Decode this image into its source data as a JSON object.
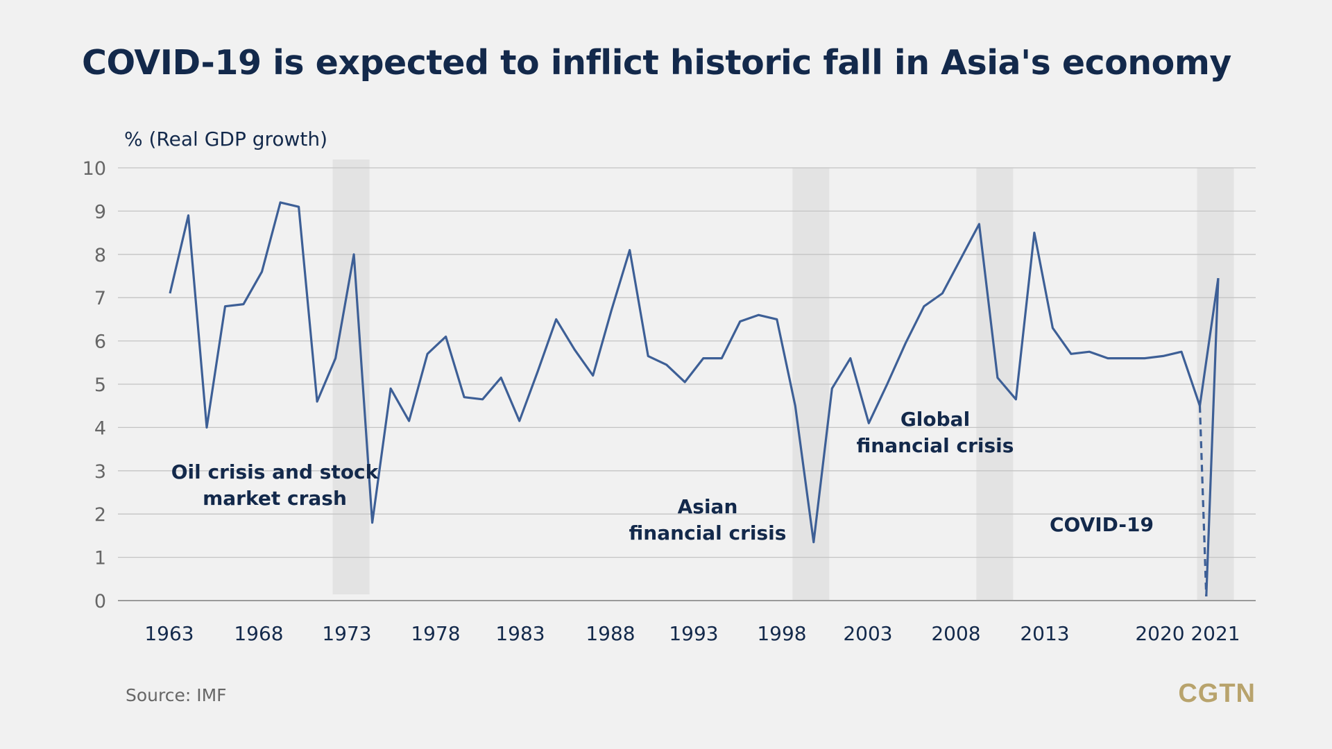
{
  "title": "COVID-19 is expected to inflict historic fall in Asia's economy",
  "source": "Source: IMF",
  "logo_text": "CGTN",
  "colors": {
    "background": "#f1f1f1",
    "title": "#13294b",
    "line": "#3d5f96",
    "shade": "#e3e3e3",
    "grid": "#c4c4c4",
    "annotation": "#13294b",
    "logo": "#b8a36c"
  },
  "chart_data": {
    "type": "line",
    "ylabel": "% (Real GDP growth)",
    "ylim": [
      0,
      10
    ],
    "y_ticks": [
      "0",
      "1",
      "2",
      "3",
      "4",
      "5",
      "6",
      "7",
      "8",
      "9",
      "10"
    ],
    "grid": "horizontal",
    "x_tick_labels": [
      "1963",
      "1968",
      "1973",
      "1978",
      "1983",
      "1988",
      "1993",
      "1998",
      "2003",
      "2008",
      "2013",
      "2020",
      "2021"
    ],
    "series": [
      {
        "x": [
          1964,
          1965,
          1966,
          1967,
          1968,
          1969,
          1970,
          1971,
          1972,
          1973,
          1974,
          1975,
          1976,
          1977,
          1978,
          1979,
          1980,
          1981,
          1982,
          1983,
          1984,
          1985,
          1986,
          1987,
          1988,
          1989,
          1990,
          1991,
          1992,
          1993,
          1994,
          1995,
          1996,
          1997,
          1998,
          1999,
          2000,
          2001,
          2002,
          2003,
          2004,
          2005,
          2006,
          2007,
          2008,
          2009,
          2010,
          2011,
          2012,
          2013,
          2014,
          2015,
          2016,
          2017,
          2018,
          2019,
          2020,
          2021
        ],
        "values": [
          7.1,
          8.9,
          4.0,
          6.8,
          6.85,
          7.6,
          9.2,
          9.1,
          4.6,
          5.6,
          8.0,
          1.8,
          4.9,
          4.15,
          5.7,
          6.1,
          4.7,
          4.65,
          5.15,
          4.15,
          5.3,
          6.5,
          5.8,
          5.2,
          6.7,
          8.1,
          5.65,
          5.45,
          5.05,
          5.6,
          5.6,
          6.45,
          6.6,
          6.5,
          4.5,
          1.35,
          4.9,
          5.6,
          4.1,
          5.0,
          5.95,
          6.8,
          7.1,
          7.9,
          8.7,
          5.15,
          4.65,
          8.5,
          6.3,
          5.7,
          5.75,
          5.6,
          5.6,
          5.6,
          5.65,
          5.75,
          4.5,
          7.45
        ],
        "projected_to": 2020,
        "projected_value": 0.0
      }
    ],
    "shaded_periods": [
      {
        "from": 1973,
        "to": 1975
      },
      {
        "from": 1998,
        "to": 2000
      },
      {
        "from": 2008,
        "to": 2010
      },
      {
        "from": 2020,
        "to": 2022
      }
    ],
    "annotations": [
      {
        "id": "oil",
        "lines": [
          "Oil crisis and stock",
          "market crash"
        ]
      },
      {
        "id": "asian",
        "lines": [
          "Asian",
          "financial crisis"
        ]
      },
      {
        "id": "global",
        "lines": [
          "Global",
          "financial crisis"
        ]
      },
      {
        "id": "covid",
        "lines": [
          "COVID-19"
        ]
      }
    ]
  }
}
